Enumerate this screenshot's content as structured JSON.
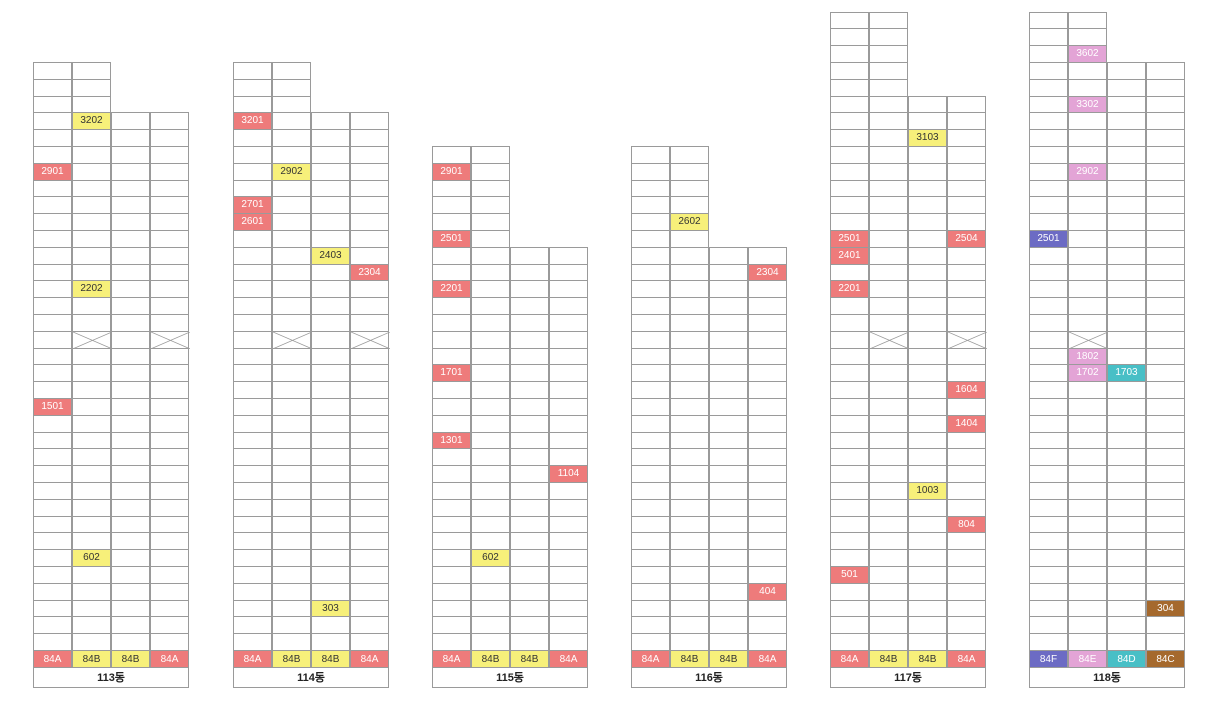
{
  "palette": {
    "84A": "#ee7b7b",
    "84B": "#f7f07a",
    "84C": "#a5692d",
    "84D": "#48bfc6",
    "84E": "#e3a4d6",
    "84F": "#6c6bc4"
  },
  "buildings": [
    {
      "name": "113동",
      "types": [
        "84A",
        "84B",
        "84B",
        "84A"
      ],
      "floors": [
        35,
        35,
        32,
        32
      ],
      "voids": [
        [
          19,
          1
        ],
        [
          19,
          3
        ]
      ],
      "units": [
        {
          "label": "3202",
          "type": "84B",
          "floor": 32,
          "line": 1
        },
        {
          "label": "2901",
          "type": "84A",
          "floor": 29,
          "line": 0
        },
        {
          "label": "2202",
          "type": "84B",
          "floor": 22,
          "line": 1
        },
        {
          "label": "1501",
          "type": "84A",
          "floor": 15,
          "line": 0
        },
        {
          "label": "602",
          "type": "84B",
          "floor": 6,
          "line": 1
        }
      ]
    },
    {
      "name": "114동",
      "types": [
        "84A",
        "84B",
        "84B",
        "84A"
      ],
      "floors": [
        35,
        35,
        32,
        32
      ],
      "voids": [
        [
          19,
          1
        ],
        [
          19,
          3
        ]
      ],
      "units": [
        {
          "label": "3201",
          "type": "84A",
          "floor": 32,
          "line": 0
        },
        {
          "label": "2902",
          "type": "84B",
          "floor": 29,
          "line": 1
        },
        {
          "label": "2701",
          "type": "84A",
          "floor": 27,
          "line": 0
        },
        {
          "label": "2601",
          "type": "84A",
          "floor": 26,
          "line": 0
        },
        {
          "label": "2403",
          "type": "84B",
          "floor": 24,
          "line": 2
        },
        {
          "label": "2304",
          "type": "84A",
          "floor": 23,
          "line": 3
        },
        {
          "label": "303",
          "type": "84B",
          "floor": 3,
          "line": 2
        }
      ]
    },
    {
      "name": "115동",
      "types": [
        "84A",
        "84B",
        "84B",
        "84A"
      ],
      "floors": [
        30,
        30,
        24,
        24
      ],
      "voids": [],
      "units": [
        {
          "label": "2901",
          "type": "84A",
          "floor": 29,
          "line": 0
        },
        {
          "label": "2501",
          "type": "84A",
          "floor": 25,
          "line": 0
        },
        {
          "label": "2201",
          "type": "84A",
          "floor": 22,
          "line": 0
        },
        {
          "label": "1701",
          "type": "84A",
          "floor": 17,
          "line": 0
        },
        {
          "label": "1301",
          "type": "84A",
          "floor": 13,
          "line": 0
        },
        {
          "label": "1104",
          "type": "84A",
          "floor": 11,
          "line": 3
        },
        {
          "label": "602",
          "type": "84B",
          "floor": 6,
          "line": 1
        }
      ]
    },
    {
      "name": "116동",
      "types": [
        "84A",
        "84B",
        "84B",
        "84A"
      ],
      "floors": [
        30,
        30,
        24,
        24
      ],
      "voids": [],
      "units": [
        {
          "label": "2602",
          "type": "84B",
          "floor": 26,
          "line": 1
        },
        {
          "label": "2304",
          "type": "84A",
          "floor": 23,
          "line": 3
        },
        {
          "label": "404",
          "type": "84A",
          "floor": 4,
          "line": 3
        }
      ]
    },
    {
      "name": "117동",
      "types": [
        "84A",
        "84B",
        "84B",
        "84A"
      ],
      "floors": [
        38,
        38,
        33,
        33
      ],
      "voids": [
        [
          19,
          1
        ],
        [
          19,
          3
        ]
      ],
      "units": [
        {
          "label": "3103",
          "type": "84B",
          "floor": 31,
          "line": 2
        },
        {
          "label": "2501",
          "type": "84A",
          "floor": 25,
          "line": 0
        },
        {
          "label": "2504",
          "type": "84A",
          "floor": 25,
          "line": 3
        },
        {
          "label": "2401",
          "type": "84A",
          "floor": 24,
          "line": 0
        },
        {
          "label": "2201",
          "type": "84A",
          "floor": 22,
          "line": 0
        },
        {
          "label": "1604",
          "type": "84A",
          "floor": 16,
          "line": 3
        },
        {
          "label": "1404",
          "type": "84A",
          "floor": 14,
          "line": 3
        },
        {
          "label": "1003",
          "type": "84B",
          "floor": 10,
          "line": 2
        },
        {
          "label": "804",
          "type": "84A",
          "floor": 8,
          "line": 3
        },
        {
          "label": "501",
          "type": "84A",
          "floor": 5,
          "line": 0
        }
      ]
    },
    {
      "name": "118동",
      "types": [
        "84F",
        "84E",
        "84D",
        "84C"
      ],
      "floors": [
        38,
        38,
        35,
        35
      ],
      "voids": [
        [
          19,
          1
        ]
      ],
      "units": [
        {
          "label": "3602",
          "type": "84E",
          "floor": 36,
          "line": 1
        },
        {
          "label": "3302",
          "type": "84E",
          "floor": 33,
          "line": 1
        },
        {
          "label": "2902",
          "type": "84E",
          "floor": 29,
          "line": 1
        },
        {
          "label": "2501",
          "type": "84F",
          "floor": 25,
          "line": 0
        },
        {
          "label": "1802",
          "type": "84E",
          "floor": 18,
          "line": 1
        },
        {
          "label": "1702",
          "type": "84E",
          "floor": 17,
          "line": 1
        },
        {
          "label": "1703",
          "type": "84D",
          "floor": 17,
          "line": 2
        },
        {
          "label": "304",
          "type": "84C",
          "floor": 3,
          "line": 3
        }
      ]
    }
  ]
}
